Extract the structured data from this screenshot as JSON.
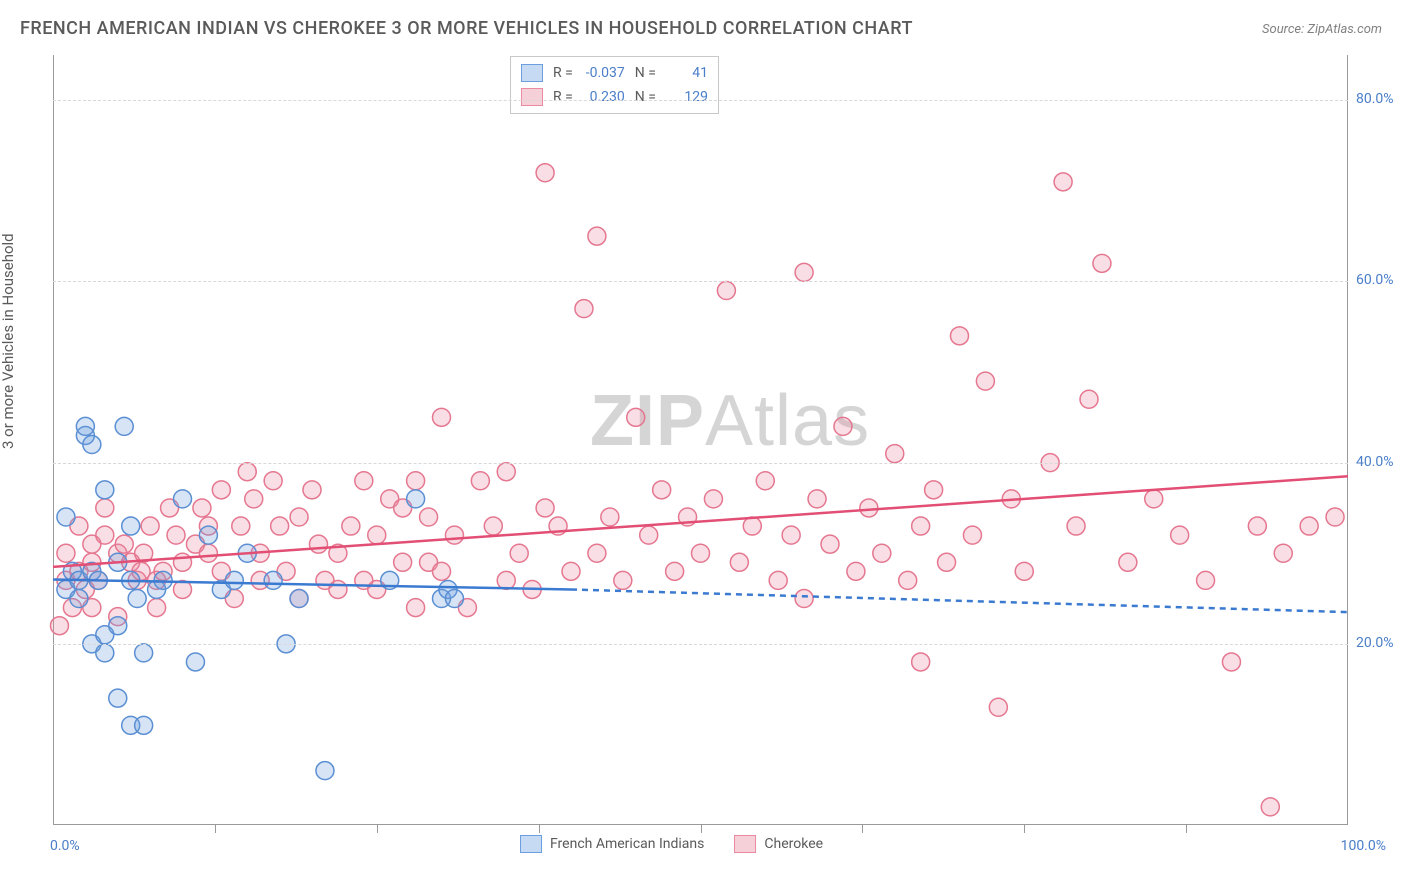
{
  "title": "FRENCH AMERICAN INDIAN VS CHEROKEE 3 OR MORE VEHICLES IN HOUSEHOLD CORRELATION CHART",
  "source": "Source: ZipAtlas.com",
  "watermark_a": "ZIP",
  "watermark_b": "Atlas",
  "ylabel": "3 or more Vehicles in Household",
  "chart": {
    "type": "scatter",
    "background_color": "#ffffff",
    "grid_color": "#d8d8d8",
    "axis_color": "#9a9a9a",
    "tick_label_color": "#4a7ec9",
    "tick_fontsize": 14,
    "title_fontsize": 18,
    "title_color": "#5a5a5a",
    "xlim": [
      0,
      100
    ],
    "ylim": [
      0,
      85
    ],
    "ytick_values": [
      20,
      40,
      60,
      80
    ],
    "ytick_labels": [
      "20.0%",
      "40.0%",
      "60.0%",
      "80.0%"
    ],
    "xtick_values": [
      0,
      12.5,
      25,
      37.5,
      50,
      62.5,
      75,
      87.5,
      100
    ],
    "xtick_label_left": "0.0%",
    "xtick_label_right": "100.0%",
    "marker_radius": 9,
    "marker_stroke_width": 1.5,
    "marker_fill_opacity": 0.28,
    "trend_line_width": 2.5,
    "trend_dash_pattern": "6,5"
  },
  "series": {
    "blue": {
      "label": "French American Indians",
      "swatch_fill": "#c6daf3",
      "swatch_stroke": "#6d9fe0",
      "marker_fill": "#6d9fe0",
      "marker_stroke": "#5b8fd3",
      "trend_color": "#3b7ad1",
      "R_label": "R =",
      "R_value": "-0.037",
      "N_label": "N =",
      "N_value": "41",
      "trend_solid": {
        "x1": 0,
        "y1": 27.1,
        "x2": 40,
        "y2": 26.0
      },
      "trend_dashed": {
        "x1": 40,
        "y1": 26.0,
        "x2": 100,
        "y2": 23.5
      },
      "points": [
        [
          1,
          34
        ],
        [
          1,
          26
        ],
        [
          1.5,
          28
        ],
        [
          2,
          25
        ],
        [
          2,
          27
        ],
        [
          2.5,
          43
        ],
        [
          2.5,
          44
        ],
        [
          3,
          42
        ],
        [
          3,
          28
        ],
        [
          3,
          20
        ],
        [
          3.5,
          27
        ],
        [
          4,
          21
        ],
        [
          4,
          37
        ],
        [
          4,
          19
        ],
        [
          5,
          29
        ],
        [
          5,
          14
        ],
        [
          5.5,
          44
        ],
        [
          5,
          22
        ],
        [
          6,
          11
        ],
        [
          6,
          33
        ],
        [
          6,
          27
        ],
        [
          6.5,
          25
        ],
        [
          7,
          11
        ],
        [
          7,
          19
        ],
        [
          8,
          26
        ],
        [
          8.5,
          27
        ],
        [
          10,
          36
        ],
        [
          11,
          18
        ],
        [
          12,
          32
        ],
        [
          13,
          26
        ],
        [
          14,
          27
        ],
        [
          15,
          30
        ],
        [
          17,
          27
        ],
        [
          18,
          20
        ],
        [
          19,
          25
        ],
        [
          21,
          6
        ],
        [
          26,
          27
        ],
        [
          28,
          36
        ],
        [
          30,
          25
        ],
        [
          30.5,
          26
        ],
        [
          31,
          25
        ]
      ]
    },
    "pink": {
      "label": "Cherokee",
      "swatch_fill": "#f6d0d8",
      "swatch_stroke": "#eb8ba2",
      "marker_fill": "#eb8ba2",
      "marker_stroke": "#e57790",
      "trend_color": "#e24e74",
      "R_label": "R =",
      "R_value": "0.230",
      "N_label": "N =",
      "N_value": "129",
      "trend_solid": {
        "x1": 0,
        "y1": 28.5,
        "x2": 100,
        "y2": 38.5
      },
      "points": [
        [
          0.5,
          22
        ],
        [
          1,
          27
        ],
        [
          1,
          30
        ],
        [
          1.5,
          24
        ],
        [
          2,
          28
        ],
        [
          2,
          33
        ],
        [
          2.5,
          26
        ],
        [
          3,
          31
        ],
        [
          3,
          29
        ],
        [
          3,
          24
        ],
        [
          3.5,
          27
        ],
        [
          4,
          32
        ],
        [
          4,
          35
        ],
        [
          5,
          30
        ],
        [
          5,
          23
        ],
        [
          5.5,
          31
        ],
        [
          6,
          29
        ],
        [
          6.5,
          27
        ],
        [
          6.8,
          28
        ],
        [
          7,
          30
        ],
        [
          7.5,
          33
        ],
        [
          8,
          27
        ],
        [
          8,
          24
        ],
        [
          8.5,
          28
        ],
        [
          9,
          35
        ],
        [
          9.5,
          32
        ],
        [
          10,
          29
        ],
        [
          10,
          26
        ],
        [
          11,
          31
        ],
        [
          11.5,
          35
        ],
        [
          12,
          33
        ],
        [
          12,
          30
        ],
        [
          13,
          28
        ],
        [
          13,
          37
        ],
        [
          14,
          25
        ],
        [
          14.5,
          33
        ],
        [
          15,
          39
        ],
        [
          15.5,
          36
        ],
        [
          16,
          30
        ],
        [
          16,
          27
        ],
        [
          17,
          38
        ],
        [
          17.5,
          33
        ],
        [
          18,
          28
        ],
        [
          19,
          34
        ],
        [
          19,
          25
        ],
        [
          20,
          37
        ],
        [
          20.5,
          31
        ],
        [
          21,
          27
        ],
        [
          22,
          26
        ],
        [
          22,
          30
        ],
        [
          23,
          33
        ],
        [
          24,
          27
        ],
        [
          24,
          38
        ],
        [
          25,
          32
        ],
        [
          25,
          26
        ],
        [
          26,
          36
        ],
        [
          27,
          29
        ],
        [
          27,
          35
        ],
        [
          28,
          24
        ],
        [
          28,
          38
        ],
        [
          29,
          34
        ],
        [
          29,
          29
        ],
        [
          30,
          45
        ],
        [
          30,
          28
        ],
        [
          31,
          32
        ],
        [
          32,
          24
        ],
        [
          33,
          38
        ],
        [
          34,
          33
        ],
        [
          35,
          27
        ],
        [
          35,
          39
        ],
        [
          36,
          30
        ],
        [
          37,
          26
        ],
        [
          38,
          35
        ],
        [
          38,
          72
        ],
        [
          39,
          33
        ],
        [
          40,
          28
        ],
        [
          41,
          57
        ],
        [
          42,
          30
        ],
        [
          42,
          65
        ],
        [
          43,
          34
        ],
        [
          44,
          27
        ],
        [
          45,
          45
        ],
        [
          46,
          32
        ],
        [
          47,
          37
        ],
        [
          48,
          28
        ],
        [
          49,
          34
        ],
        [
          50,
          30
        ],
        [
          51,
          36
        ],
        [
          52,
          59
        ],
        [
          53,
          29
        ],
        [
          54,
          33
        ],
        [
          55,
          38
        ],
        [
          56,
          27
        ],
        [
          57,
          32
        ],
        [
          58,
          25
        ],
        [
          58,
          61
        ],
        [
          59,
          36
        ],
        [
          60,
          31
        ],
        [
          61,
          44
        ],
        [
          62,
          28
        ],
        [
          63,
          35
        ],
        [
          64,
          30
        ],
        [
          65,
          41
        ],
        [
          66,
          27
        ],
        [
          67,
          18
        ],
        [
          67,
          33
        ],
        [
          68,
          37
        ],
        [
          69,
          29
        ],
        [
          70,
          54
        ],
        [
          71,
          32
        ],
        [
          72,
          49
        ],
        [
          73,
          13
        ],
        [
          74,
          36
        ],
        [
          75,
          28
        ],
        [
          77,
          40
        ],
        [
          78,
          71
        ],
        [
          79,
          33
        ],
        [
          80,
          47
        ],
        [
          81,
          62
        ],
        [
          83,
          29
        ],
        [
          85,
          36
        ],
        [
          87,
          32
        ],
        [
          89,
          27
        ],
        [
          91,
          18
        ],
        [
          93,
          33
        ],
        [
          94,
          2
        ],
        [
          95,
          30
        ],
        [
          97,
          33
        ],
        [
          99,
          34
        ]
      ]
    }
  }
}
